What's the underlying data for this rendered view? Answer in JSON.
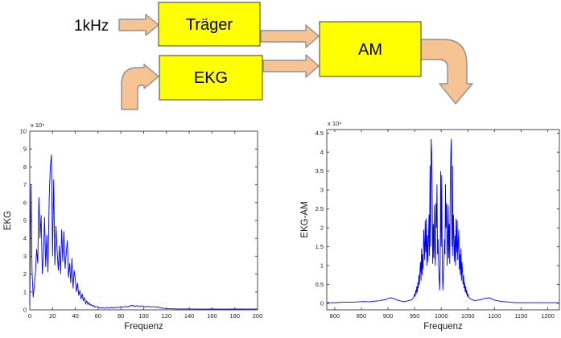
{
  "diagram": {
    "input_label": "1kHz",
    "blocks": [
      {
        "id": "traeger",
        "label": "Träger"
      },
      {
        "id": "ekg",
        "label": "EKG"
      },
      {
        "id": "am",
        "label": "AM"
      }
    ],
    "arrows": [
      {
        "id": "input-to-traeger"
      },
      {
        "id": "ekg-signal-input"
      },
      {
        "id": "traeger-to-am"
      },
      {
        "id": "ekg-to-am"
      },
      {
        "id": "am-output"
      }
    ],
    "colors": {
      "block_fill": "#ffff00",
      "block_border": "#5f5f33",
      "arrow_fill": "#f6c392",
      "arrow_border": "#8f8f8f",
      "text": "#000000"
    }
  },
  "chart_data": [
    {
      "type": "line",
      "id": "ekg-spectrum",
      "title": "",
      "xlabel": "Frequenz",
      "ylabel": "EKG",
      "multiplier_label": "x 10⁴",
      "xlim": [
        0,
        200
      ],
      "ylim": [
        0,
        10
      ],
      "xticks": [
        0,
        20,
        40,
        60,
        80,
        100,
        120,
        140,
        160,
        180,
        200
      ],
      "yticks": [
        0,
        1,
        2,
        3,
        4,
        5,
        6,
        7,
        8,
        9,
        10
      ],
      "grid": false,
      "legend": null,
      "line_color": "#0000ff",
      "points": [
        [
          0,
          0.3
        ],
        [
          1,
          7.0
        ],
        [
          2,
          2.2
        ],
        [
          3,
          0.7
        ],
        [
          4,
          1.4
        ],
        [
          5,
          2.1
        ],
        [
          6,
          3.4
        ],
        [
          7,
          2.6
        ],
        [
          8,
          6.3
        ],
        [
          9,
          4.0
        ],
        [
          10,
          5.3
        ],
        [
          11,
          2.0
        ],
        [
          12,
          3.1
        ],
        [
          13,
          5.2
        ],
        [
          14,
          2.4
        ],
        [
          15,
          4.2
        ],
        [
          16,
          2.1
        ],
        [
          17,
          6.2
        ],
        [
          18,
          8.0
        ],
        [
          19,
          8.7
        ],
        [
          20,
          3.0
        ],
        [
          21,
          7.3
        ],
        [
          22,
          2.5
        ],
        [
          23,
          4.7
        ],
        [
          24,
          3.3
        ],
        [
          25,
          2.2
        ],
        [
          26,
          3.6
        ],
        [
          27,
          2.0
        ],
        [
          28,
          4.5
        ],
        [
          29,
          2.7
        ],
        [
          30,
          4.4
        ],
        [
          31,
          2.3
        ],
        [
          32,
          3.2
        ],
        [
          33,
          3.9
        ],
        [
          34,
          1.8
        ],
        [
          35,
          2.6
        ],
        [
          36,
          1.5
        ],
        [
          37,
          2.9
        ],
        [
          38,
          1.2
        ],
        [
          39,
          2.2
        ],
        [
          40,
          1.7
        ],
        [
          41,
          1.0
        ],
        [
          42,
          1.5
        ],
        [
          43,
          0.8
        ],
        [
          44,
          1.1
        ],
        [
          45,
          0.6
        ],
        [
          46,
          0.9
        ],
        [
          47,
          0.5
        ],
        [
          48,
          0.7
        ],
        [
          49,
          0.35
        ],
        [
          50,
          0.5
        ],
        [
          51,
          0.3
        ],
        [
          52,
          0.4
        ],
        [
          53,
          0.25
        ],
        [
          54,
          0.3
        ],
        [
          55,
          0.2
        ],
        [
          56,
          0.25
        ],
        [
          57,
          0.15
        ],
        [
          58,
          0.2
        ],
        [
          60,
          0.15
        ],
        [
          62,
          0.1
        ],
        [
          64,
          0.12
        ],
        [
          66,
          0.09
        ],
        [
          68,
          0.13
        ],
        [
          70,
          0.1
        ],
        [
          72,
          0.14
        ],
        [
          74,
          0.1
        ],
        [
          76,
          0.15
        ],
        [
          78,
          0.12
        ],
        [
          80,
          0.18
        ],
        [
          82,
          0.14
        ],
        [
          84,
          0.2
        ],
        [
          86,
          0.15
        ],
        [
          88,
          0.22
        ],
        [
          90,
          0.25
        ],
        [
          92,
          0.2
        ],
        [
          94,
          0.24
        ],
        [
          96,
          0.18
        ],
        [
          98,
          0.22
        ],
        [
          100,
          0.2
        ],
        [
          102,
          0.16
        ],
        [
          104,
          0.2
        ],
        [
          106,
          0.15
        ],
        [
          108,
          0.18
        ],
        [
          110,
          0.14
        ],
        [
          112,
          0.16
        ],
        [
          114,
          0.12
        ],
        [
          116,
          0.1
        ],
        [
          118,
          0.08
        ],
        [
          120,
          0.07
        ],
        [
          125,
          0.06
        ],
        [
          130,
          0.05
        ],
        [
          140,
          0.05
        ],
        [
          150,
          0.04
        ],
        [
          160,
          0.05
        ],
        [
          170,
          0.04
        ],
        [
          180,
          0.05
        ],
        [
          190,
          0.04
        ],
        [
          200,
          0.05
        ]
      ]
    },
    {
      "type": "line",
      "id": "ekg-am-spectrum",
      "title": "",
      "xlabel": "Frequenz",
      "ylabel": "EKG-AM",
      "multiplier_label": "x 10⁴",
      "xlim": [
        785,
        1222
      ],
      "ylim": [
        -0.17,
        4.6
      ],
      "xticks": [
        800,
        850,
        900,
        950,
        1000,
        1050,
        1100,
        1150,
        1200
      ],
      "yticks": [
        0,
        0.5,
        1,
        1.5,
        2,
        2.5,
        3,
        3.5,
        4,
        4.5
      ],
      "grid": false,
      "legend": null,
      "line_color": "#0000ff",
      "points": [
        [
          785,
          0.02
        ],
        [
          800,
          0.02
        ],
        [
          815,
          0.03
        ],
        [
          830,
          0.03
        ],
        [
          845,
          0.04
        ],
        [
          855,
          0.05
        ],
        [
          865,
          0.04
        ],
        [
          875,
          0.06
        ],
        [
          885,
          0.07
        ],
        [
          890,
          0.09
        ],
        [
          895,
          0.1
        ],
        [
          900,
          0.13
        ],
        [
          905,
          0.15
        ],
        [
          910,
          0.13
        ],
        [
          915,
          0.1
        ],
        [
          920,
          0.08
        ],
        [
          925,
          0.06
        ],
        [
          930,
          0.05
        ],
        [
          935,
          0.06
        ],
        [
          940,
          0.08
        ],
        [
          945,
          0.1
        ],
        [
          948,
          0.15
        ],
        [
          950,
          0.25
        ],
        [
          951,
          0.18
        ],
        [
          952,
          0.35
        ],
        [
          953,
          0.25
        ],
        [
          954,
          0.45
        ],
        [
          955,
          0.3
        ],
        [
          956,
          0.55
        ],
        [
          957,
          0.4
        ],
        [
          958,
          0.75
        ],
        [
          959,
          0.5
        ],
        [
          960,
          0.85
        ],
        [
          961,
          1.1
        ],
        [
          962,
          0.6
        ],
        [
          963,
          1.45
        ],
        [
          964,
          0.75
        ],
        [
          965,
          1.3
        ],
        [
          966,
          0.9
        ],
        [
          967,
          1.95
        ],
        [
          968,
          1.6
        ],
        [
          969,
          1.15
        ],
        [
          970,
          2.2
        ],
        [
          971,
          1.35
        ],
        [
          972,
          2.25
        ],
        [
          973,
          1.0
        ],
        [
          974,
          1.8
        ],
        [
          975,
          1.1
        ],
        [
          976,
          1.65
        ],
        [
          977,
          2.35
        ],
        [
          978,
          1.25
        ],
        [
          979,
          3.65
        ],
        [
          980,
          1.5
        ],
        [
          981,
          4.35
        ],
        [
          982,
          4.0
        ],
        [
          983,
          3.1
        ],
        [
          984,
          1.05
        ],
        [
          985,
          2.1
        ],
        [
          986,
          1.2
        ],
        [
          987,
          2.6
        ],
        [
          988,
          1.55
        ],
        [
          989,
          1.0
        ],
        [
          990,
          2.65
        ],
        [
          991,
          2.0
        ],
        [
          992,
          3.15
        ],
        [
          993,
          1.3
        ],
        [
          994,
          1.7
        ],
        [
          995,
          1.05
        ],
        [
          996,
          0.7
        ],
        [
          997,
          0.35
        ],
        [
          998,
          1.1
        ],
        [
          999,
          3.5
        ],
        [
          1000,
          1.5
        ],
        [
          1001,
          3.4
        ],
        [
          1002,
          1.1
        ],
        [
          1003,
          0.35
        ],
        [
          1004,
          0.7
        ],
        [
          1005,
          1.05
        ],
        [
          1006,
          1.7
        ],
        [
          1007,
          1.3
        ],
        [
          1008,
          3.15
        ],
        [
          1009,
          2.0
        ],
        [
          1010,
          2.65
        ],
        [
          1011,
          1.0
        ],
        [
          1012,
          1.55
        ],
        [
          1013,
          2.6
        ],
        [
          1014,
          1.2
        ],
        [
          1015,
          2.1
        ],
        [
          1016,
          1.05
        ],
        [
          1017,
          3.1
        ],
        [
          1018,
          4.0
        ],
        [
          1019,
          4.35
        ],
        [
          1020,
          1.5
        ],
        [
          1021,
          3.65
        ],
        [
          1022,
          1.25
        ],
        [
          1023,
          2.35
        ],
        [
          1024,
          1.65
        ],
        [
          1025,
          1.1
        ],
        [
          1026,
          1.8
        ],
        [
          1027,
          1.0
        ],
        [
          1028,
          2.25
        ],
        [
          1029,
          1.35
        ],
        [
          1030,
          2.2
        ],
        [
          1031,
          1.15
        ],
        [
          1032,
          1.6
        ],
        [
          1033,
          1.95
        ],
        [
          1034,
          0.9
        ],
        [
          1035,
          1.3
        ],
        [
          1036,
          0.75
        ],
        [
          1037,
          1.45
        ],
        [
          1038,
          0.6
        ],
        [
          1039,
          1.1
        ],
        [
          1040,
          0.85
        ],
        [
          1041,
          0.5
        ],
        [
          1042,
          0.75
        ],
        [
          1043,
          0.4
        ],
        [
          1044,
          0.55
        ],
        [
          1045,
          0.3
        ],
        [
          1046,
          0.45
        ],
        [
          1047,
          0.25
        ],
        [
          1048,
          0.35
        ],
        [
          1049,
          0.18
        ],
        [
          1050,
          0.25
        ],
        [
          1052,
          0.15
        ],
        [
          1055,
          0.12
        ],
        [
          1058,
          0.1
        ],
        [
          1062,
          0.08
        ],
        [
          1066,
          0.08
        ],
        [
          1070,
          0.09
        ],
        [
          1074,
          0.1
        ],
        [
          1078,
          0.12
        ],
        [
          1082,
          0.13
        ],
        [
          1086,
          0.14
        ],
        [
          1090,
          0.15
        ],
        [
          1094,
          0.13
        ],
        [
          1098,
          0.1
        ],
        [
          1102,
          0.08
        ],
        [
          1106,
          0.07
        ],
        [
          1110,
          0.06
        ],
        [
          1115,
          0.05
        ],
        [
          1120,
          0.04
        ],
        [
          1125,
          0.04
        ],
        [
          1130,
          0.03
        ],
        [
          1140,
          0.02
        ],
        [
          1150,
          0.02
        ],
        [
          1160,
          0.02
        ],
        [
          1180,
          0.02
        ],
        [
          1200,
          0.02
        ],
        [
          1220,
          0.02
        ]
      ]
    }
  ]
}
